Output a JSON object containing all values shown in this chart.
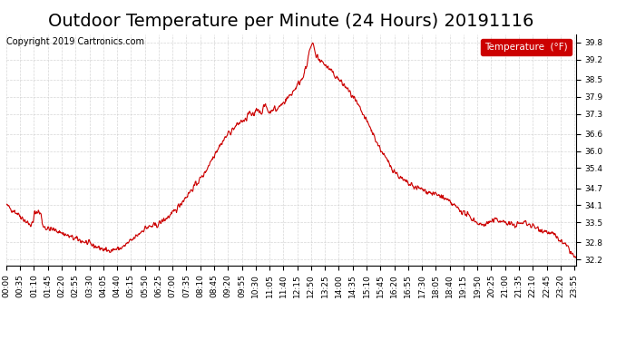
{
  "title": "Outdoor Temperature per Minute (24 Hours) 20191116",
  "copyright_text": "Copyright 2019 Cartronics.com",
  "legend_label": "Temperature  (°F)",
  "background_color": "#ffffff",
  "plot_bg_color": "#ffffff",
  "grid_color": "#cccccc",
  "line_color": "#cc0000",
  "legend_bg": "#cc0000",
  "legend_text_color": "#ffffff",
  "ylim_min": 32.0,
  "ylim_max": 40.1,
  "yticks": [
    32.2,
    32.8,
    33.5,
    34.1,
    34.7,
    35.4,
    36.0,
    36.6,
    37.3,
    37.9,
    38.5,
    39.2,
    39.8
  ],
  "title_fontsize": 14,
  "tick_fontsize": 6.5,
  "copyright_fontsize": 7
}
